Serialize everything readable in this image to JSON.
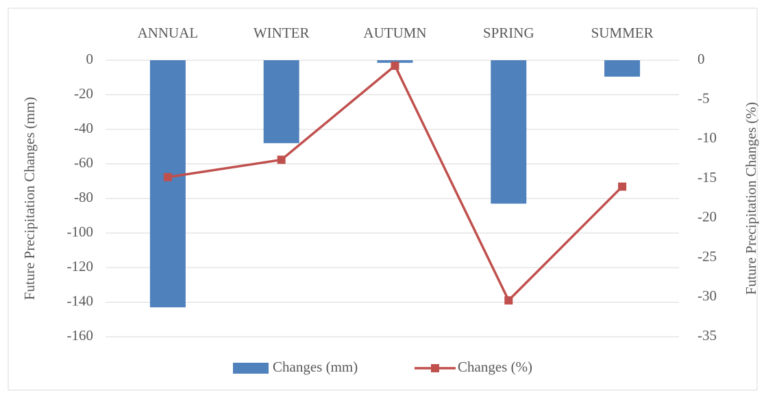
{
  "chart_data": {
    "type": "bar",
    "categories": [
      "ANNUAL",
      "WINTER",
      "AUTUMN",
      "SPRING",
      "SUMMER"
    ],
    "series": [
      {
        "name": "Changes (mm)",
        "type": "bar",
        "color": "#4f81bd",
        "values": [
          -143,
          -48,
          -1.5,
          -83,
          -9.5
        ]
      },
      {
        "name": "Changes (%)",
        "type": "line",
        "axis": "y2",
        "color": "#c0504d",
        "values": [
          -14.8,
          -12.6,
          -0.7,
          -30.4,
          -16
        ]
      }
    ],
    "ylabel": "Future Precipitation Changes (mm)",
    "y2label": "Future Precipitation Changes (%)",
    "ylim": [
      -160,
      0
    ],
    "yticks": [
      0,
      -20,
      -40,
      -60,
      -80,
      -100,
      -120,
      -140,
      -160
    ],
    "y2lim": [
      -35,
      0
    ],
    "y2ticks": [
      0,
      -5,
      -10,
      -15,
      -20,
      -25,
      -30,
      -35
    ],
    "grid": true,
    "legend": "bottom"
  }
}
